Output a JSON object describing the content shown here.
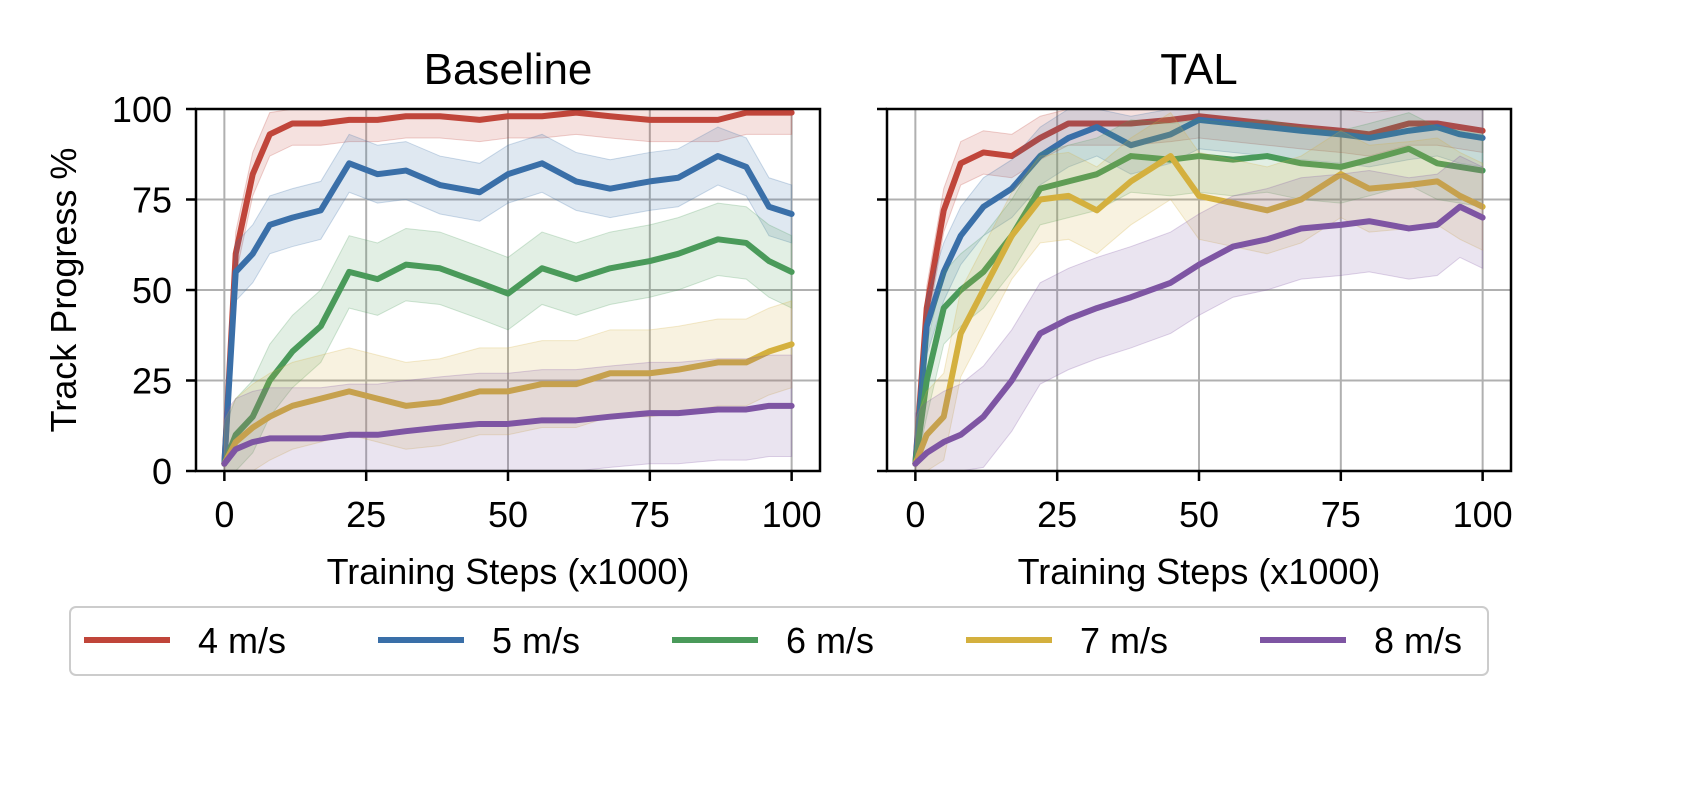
{
  "chart_data": [
    {
      "type": "line",
      "title": "Baseline",
      "xlabel": "Training Steps (x1000)",
      "ylabel": "Track Progress %",
      "xlim": [
        -5,
        105
      ],
      "ylim": [
        0,
        100
      ],
      "xticks": [
        "0",
        "25",
        "50",
        "75",
        "100"
      ],
      "yticks": [
        "0",
        "25",
        "50",
        "75",
        "100"
      ],
      "grid": true,
      "x": [
        0,
        2,
        5,
        8,
        12,
        17,
        22,
        27,
        32,
        38,
        45,
        50,
        56,
        62,
        68,
        75,
        80,
        87,
        92,
        96,
        100
      ],
      "series": [
        {
          "name": "4 m/s",
          "values": [
            2,
            60,
            82,
            93,
            96,
            96,
            97,
            97,
            98,
            98,
            97,
            98,
            98,
            99,
            98,
            97,
            97,
            97,
            99,
            99,
            99
          ]
        },
        {
          "name": "5 m/s",
          "values": [
            2,
            55,
            60,
            68,
            70,
            72,
            85,
            82,
            83,
            79,
            77,
            82,
            85,
            80,
            78,
            80,
            81,
            87,
            84,
            73,
            71
          ]
        },
        {
          "name": "6 m/s",
          "values": [
            2,
            10,
            15,
            25,
            33,
            40,
            55,
            53,
            57,
            56,
            52,
            49,
            56,
            53,
            56,
            58,
            60,
            64,
            63,
            58,
            55
          ]
        },
        {
          "name": "7 m/s",
          "values": [
            2,
            8,
            12,
            15,
            18,
            20,
            22,
            20,
            18,
            19,
            22,
            22,
            24,
            24,
            27,
            27,
            28,
            30,
            30,
            33,
            35
          ]
        },
        {
          "name": "8 m/s",
          "values": [
            2,
            6,
            8,
            9,
            9,
            9,
            10,
            10,
            11,
            12,
            13,
            13,
            14,
            14,
            15,
            16,
            16,
            17,
            17,
            18,
            18
          ]
        }
      ]
    },
    {
      "type": "line",
      "title": "TAL",
      "xlabel": "Training Steps (x1000)",
      "ylabel": "",
      "xlim": [
        -5,
        105
      ],
      "ylim": [
        0,
        100
      ],
      "xticks": [
        "0",
        "25",
        "50",
        "75",
        "100"
      ],
      "yticks": [],
      "grid": true,
      "x": [
        0,
        2,
        5,
        8,
        12,
        17,
        22,
        27,
        32,
        38,
        45,
        50,
        56,
        62,
        68,
        75,
        80,
        87,
        92,
        96,
        100
      ],
      "series": [
        {
          "name": "4 m/s",
          "values": [
            2,
            45,
            72,
            85,
            88,
            87,
            92,
            96,
            96,
            96,
            97,
            98,
            97,
            96,
            95,
            94,
            93,
            96,
            96,
            95,
            94
          ]
        },
        {
          "name": "5 m/s",
          "values": [
            2,
            40,
            55,
            65,
            73,
            78,
            87,
            92,
            95,
            90,
            93,
            97,
            96,
            95,
            94,
            93,
            92,
            94,
            95,
            93,
            92
          ]
        },
        {
          "name": "6 m/s",
          "values": [
            2,
            25,
            45,
            50,
            55,
            65,
            78,
            80,
            82,
            87,
            86,
            87,
            86,
            87,
            85,
            84,
            86,
            89,
            85,
            84,
            83
          ]
        },
        {
          "name": "7 m/s",
          "values": [
            2,
            10,
            15,
            38,
            50,
            65,
            75,
            76,
            72,
            80,
            87,
            76,
            74,
            72,
            75,
            82,
            78,
            79,
            80,
            76,
            73
          ]
        },
        {
          "name": "8 m/s",
          "values": [
            2,
            5,
            8,
            10,
            15,
            25,
            38,
            42,
            45,
            48,
            52,
            57,
            62,
            64,
            67,
            68,
            69,
            67,
            68,
            73,
            70
          ]
        }
      ]
    }
  ],
  "legend": {
    "placement": "bottom",
    "items": [
      {
        "label": "4 m/s",
        "color": "#c0453a"
      },
      {
        "label": "5 m/s",
        "color": "#3a6fa8"
      },
      {
        "label": "6 m/s",
        "color": "#4a9a5a"
      },
      {
        "label": "7 m/s",
        "color": "#d4b03e"
      },
      {
        "label": "8 m/s",
        "color": "#7e55a3"
      }
    ]
  },
  "colors": {
    "4 m/s": "#c0453a",
    "5 m/s": "#3a6fa8",
    "6 m/s": "#4a9a5a",
    "7 m/s": "#d4b03e",
    "8 m/s": "#7e55a3",
    "grid": "#b0b0b0"
  }
}
